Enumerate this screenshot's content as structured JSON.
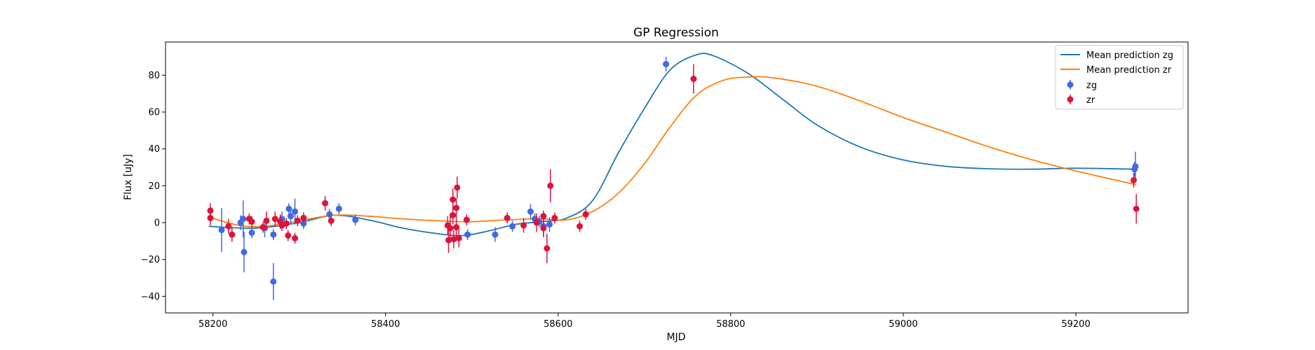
{
  "chart_data": {
    "type": "scatter",
    "title": "GP Regression",
    "xlabel": "MJD",
    "ylabel": "Flux [uJy]",
    "xlim": [
      58145,
      59330
    ],
    "ylim": [
      -49,
      98
    ],
    "x_ticks": [
      58200,
      58400,
      58600,
      58800,
      59000,
      59200
    ],
    "y_ticks": [
      -40,
      -20,
      0,
      20,
      40,
      60,
      80
    ],
    "legend_position": "top-right",
    "grid": false,
    "lines": [
      {
        "name": "Mean prediction zg",
        "color": "#1f77b4",
        "x": [
          58195,
          58250,
          58300,
          58340,
          58380,
          58420,
          58460,
          58490,
          58520,
          58550,
          58580,
          58610,
          58640,
          58670,
          58700,
          58730,
          58760,
          58780,
          58820,
          58860,
          58900,
          58950,
          59000,
          59050,
          59100,
          59150,
          59200,
          59270
        ],
        "y": [
          -2,
          -3,
          0,
          4,
          1.5,
          -3,
          -6,
          -7,
          -4.5,
          -1,
          0.5,
          2.5,
          12,
          38,
          62,
          83,
          91,
          90.5,
          81,
          67,
          53,
          41,
          34,
          30.5,
          29.2,
          29,
          29.5,
          29
        ]
      },
      {
        "name": "Mean prediction zr",
        "color": "#ff7f0e",
        "x": [
          58195,
          58230,
          58260,
          58300,
          58340,
          58380,
          58420,
          58460,
          58500,
          58540,
          58580,
          58610,
          58640,
          58670,
          58700,
          58730,
          58760,
          58790,
          58820,
          58850,
          58900,
          58950,
          59000,
          59050,
          59100,
          59150,
          59200,
          59270
        ],
        "y": [
          3,
          -1.5,
          -2,
          1,
          4,
          3.5,
          2,
          1,
          0.5,
          1.5,
          2,
          1.5,
          6,
          16,
          32,
          52,
          69,
          77,
          79,
          78.5,
          74,
          66,
          57,
          49,
          41,
          34,
          28,
          20.5
        ]
      }
    ],
    "series": [
      {
        "name": "zg",
        "color": "#4169e1",
        "points": [
          {
            "x": 58210,
            "y": -4,
            "err": 12
          },
          {
            "x": 58232,
            "y": 0,
            "err": 4
          },
          {
            "x": 58235,
            "y": 2,
            "err": 10
          },
          {
            "x": 58236,
            "y": -16,
            "err": 11
          },
          {
            "x": 58245,
            "y": -5.5,
            "err": 3
          },
          {
            "x": 58260,
            "y": -3,
            "err": 5
          },
          {
            "x": 58270,
            "y": -6.5,
            "err": 3
          },
          {
            "x": 58270,
            "y": -32,
            "err": 10
          },
          {
            "x": 58280,
            "y": 2,
            "err": 4
          },
          {
            "x": 58288,
            "y": 7.5,
            "err": 3
          },
          {
            "x": 58290,
            "y": 3.5,
            "err": 4
          },
          {
            "x": 58295,
            "y": 6,
            "err": 7
          },
          {
            "x": 58305,
            "y": -0.5,
            "err": 3
          },
          {
            "x": 58335,
            "y": 4.5,
            "err": 3
          },
          {
            "x": 58346,
            "y": 7.5,
            "err": 3
          },
          {
            "x": 58365,
            "y": 1.5,
            "err": 3
          },
          {
            "x": 58495,
            "y": -6.5,
            "err": 3
          },
          {
            "x": 58527,
            "y": -6.5,
            "err": 4
          },
          {
            "x": 58547,
            "y": -2,
            "err": 3
          },
          {
            "x": 58568,
            "y": 6,
            "err": 4
          },
          {
            "x": 58573,
            "y": 2,
            "err": 3
          },
          {
            "x": 58578,
            "y": 0.5,
            "err": 3
          },
          {
            "x": 58583,
            "y": -2,
            "err": 5
          },
          {
            "x": 58590,
            "y": -1,
            "err": 4
          },
          {
            "x": 58725,
            "y": 86,
            "err": 4
          },
          {
            "x": 59268,
            "y": 29,
            "err": 4
          },
          {
            "x": 59269,
            "y": 30.5,
            "err": 8
          }
        ]
      },
      {
        "name": "zr",
        "color": "#dc143c",
        "points": [
          {
            "x": 58197,
            "y": 6.5,
            "err": 4
          },
          {
            "x": 58197,
            "y": 2.5,
            "err": 4
          },
          {
            "x": 58218,
            "y": -2,
            "err": 4
          },
          {
            "x": 58222,
            "y": -6.5,
            "err": 4
          },
          {
            "x": 58242,
            "y": 2,
            "err": 3
          },
          {
            "x": 58245,
            "y": 0.5,
            "err": 3
          },
          {
            "x": 58258,
            "y": -2.5,
            "err": 3
          },
          {
            "x": 58262,
            "y": 1,
            "err": 5
          },
          {
            "x": 58272,
            "y": 2,
            "err": 4
          },
          {
            "x": 58278,
            "y": 0.5,
            "err": 4
          },
          {
            "x": 58280,
            "y": -1.5,
            "err": 3
          },
          {
            "x": 58285,
            "y": -0.5,
            "err": 3
          },
          {
            "x": 58287,
            "y": -7,
            "err": 3
          },
          {
            "x": 58295,
            "y": -8.5,
            "err": 3
          },
          {
            "x": 58298,
            "y": 1,
            "err": 3
          },
          {
            "x": 58305,
            "y": 2.5,
            "err": 3
          },
          {
            "x": 58330,
            "y": 10.5,
            "err": 4
          },
          {
            "x": 58337,
            "y": 1,
            "err": 3
          },
          {
            "x": 58472,
            "y": -1.5,
            "err": 5
          },
          {
            "x": 58473,
            "y": -9.5,
            "err": 7
          },
          {
            "x": 58475,
            "y": -3,
            "err": 8
          },
          {
            "x": 58478,
            "y": 4,
            "err": 5
          },
          {
            "x": 58478,
            "y": 12.5,
            "err": 6
          },
          {
            "x": 58479,
            "y": -9,
            "err": 5
          },
          {
            "x": 58482,
            "y": -2.5,
            "err": 6
          },
          {
            "x": 58482,
            "y": 8,
            "err": 5
          },
          {
            "x": 58483,
            "y": 19,
            "err": 6
          },
          {
            "x": 58485,
            "y": -8.5,
            "err": 5
          },
          {
            "x": 58494,
            "y": 1.5,
            "err": 3
          },
          {
            "x": 58541,
            "y": 2.5,
            "err": 3
          },
          {
            "x": 58560,
            "y": -1.5,
            "err": 4
          },
          {
            "x": 58575,
            "y": 0,
            "err": 5
          },
          {
            "x": 58583,
            "y": -3,
            "err": 5
          },
          {
            "x": 58583,
            "y": 3.5,
            "err": 3
          },
          {
            "x": 58587,
            "y": -14,
            "err": 8
          },
          {
            "x": 58591,
            "y": 20,
            "err": 9
          },
          {
            "x": 58596,
            "y": 2.5,
            "err": 3
          },
          {
            "x": 58625,
            "y": -2,
            "err": 3
          },
          {
            "x": 58632,
            "y": 4.5,
            "err": 3
          },
          {
            "x": 58757,
            "y": 78,
            "err": 8
          },
          {
            "x": 59267,
            "y": 23,
            "err": 4
          },
          {
            "x": 59270,
            "y": 7.5,
            "err": 8
          }
        ]
      }
    ]
  }
}
